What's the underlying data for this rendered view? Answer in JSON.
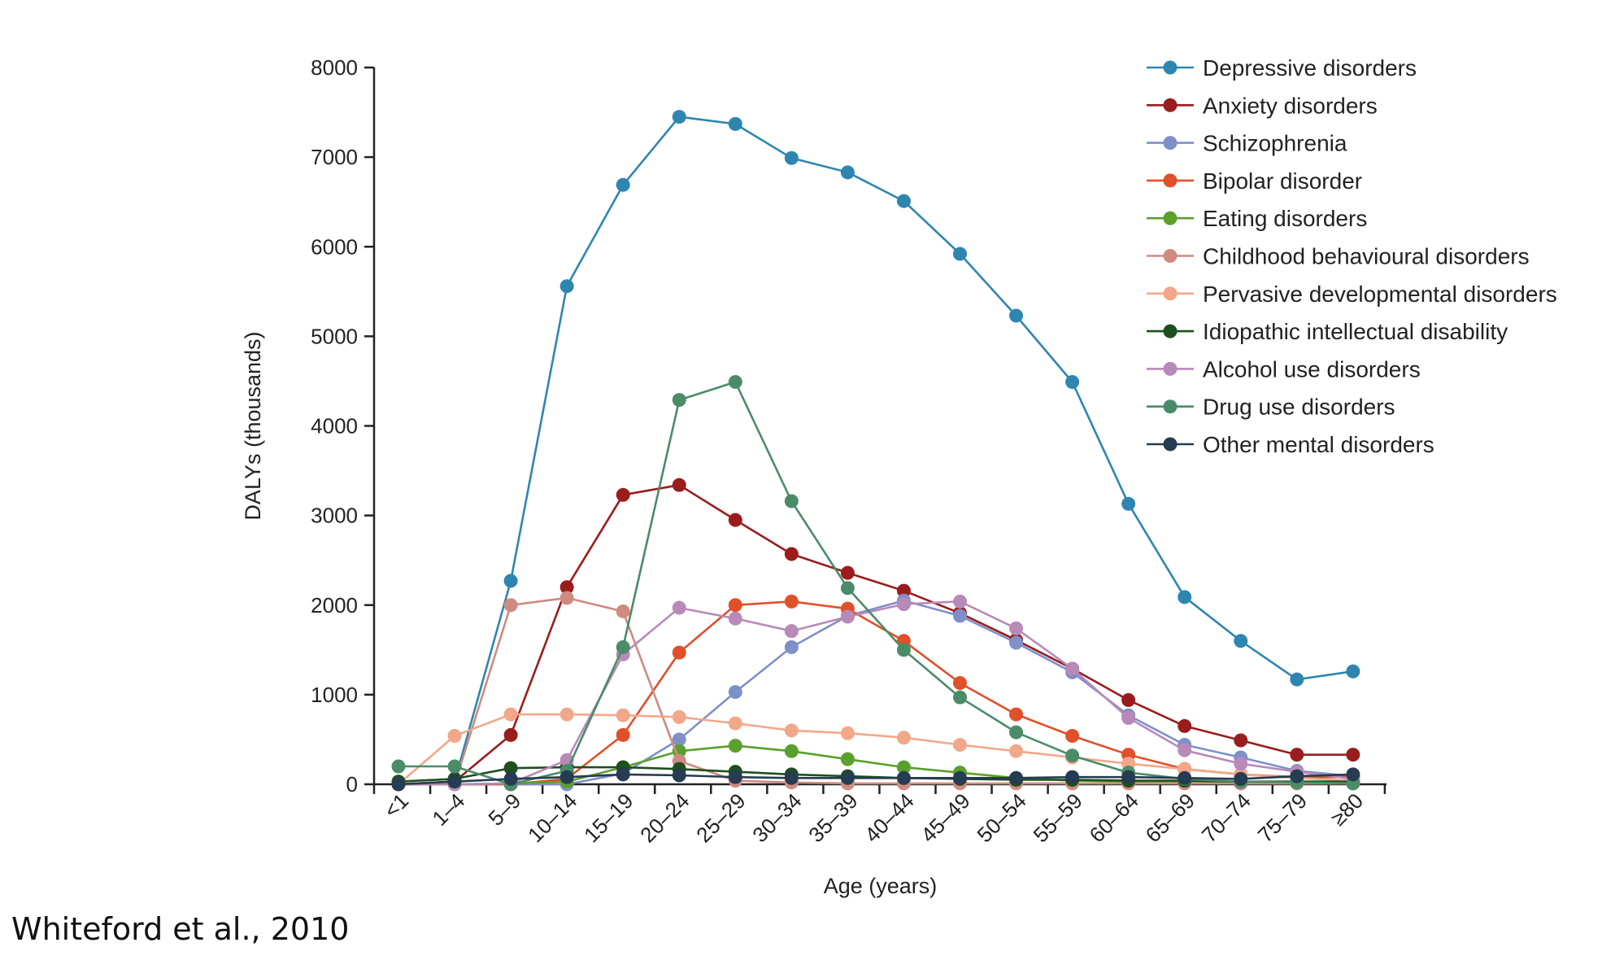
{
  "chart_data": {
    "type": "line",
    "xlabel": "Age (years)",
    "ylabel": "DALYs (thousands)",
    "ylim": [
      0,
      8000
    ],
    "yticks": [
      0,
      1000,
      2000,
      3000,
      4000,
      5000,
      6000,
      7000,
      8000
    ],
    "categories": [
      "<1",
      "1–4",
      "5–9",
      "10–14",
      "15–19",
      "20–24",
      "25–29",
      "30–34",
      "35–39",
      "40–44",
      "45–49",
      "50–54",
      "55–59",
      "60–64",
      "65–69",
      "70–74",
      "75–79",
      "≥80"
    ],
    "legend_position": "top-right",
    "grid": false,
    "series": [
      {
        "name": "Depressive disorders",
        "color": "#2e86b0",
        "values": [
          0,
          30,
          2270,
          5560,
          6690,
          7450,
          7370,
          6990,
          6830,
          6510,
          5920,
          5230,
          4490,
          3130,
          2090,
          1600,
          1170,
          1260
        ]
      },
      {
        "name": "Anxiety disorders",
        "color": "#9b1c1c",
        "values": [
          0,
          30,
          550,
          2200,
          3230,
          3340,
          2950,
          2570,
          2360,
          2160,
          1910,
          1610,
          1290,
          940,
          650,
          490,
          330,
          330
        ]
      },
      {
        "name": "Schizophrenia",
        "color": "#7f8fc8",
        "values": [
          0,
          0,
          0,
          0,
          120,
          500,
          1030,
          1530,
          1880,
          2050,
          1880,
          1580,
          1250,
          770,
          440,
          300,
          150,
          90
        ]
      },
      {
        "name": "Bipolar disorder",
        "color": "#e0502a",
        "values": [
          0,
          0,
          0,
          60,
          550,
          1470,
          2000,
          2040,
          1960,
          1600,
          1130,
          780,
          540,
          330,
          170,
          110,
          80,
          80
        ]
      },
      {
        "name": "Eating disorders",
        "color": "#5aa02c",
        "values": [
          0,
          0,
          10,
          30,
          190,
          370,
          430,
          370,
          280,
          190,
          130,
          70,
          40,
          30,
          20,
          10,
          10,
          10
        ]
      },
      {
        "name": "Childhood behavioural disorders",
        "color": "#d08a80",
        "values": [
          0,
          0,
          2000,
          2080,
          1930,
          260,
          40,
          20,
          10,
          10,
          10,
          10,
          10,
          10,
          10,
          10,
          10,
          10
        ]
      },
      {
        "name": "Pervasive developmental disorders",
        "color": "#f2a888",
        "values": [
          0,
          540,
          780,
          780,
          770,
          750,
          680,
          600,
          570,
          520,
          440,
          370,
          300,
          230,
          170,
          110,
          70,
          40
        ]
      },
      {
        "name": "Idiopathic intellectual disability",
        "color": "#1e4f1e",
        "values": [
          30,
          60,
          180,
          190,
          190,
          170,
          140,
          110,
          90,
          70,
          60,
          50,
          50,
          40,
          40,
          30,
          30,
          30
        ]
      },
      {
        "name": "Alcohol use disorders",
        "color": "#b88ab8",
        "values": [
          0,
          0,
          10,
          270,
          1450,
          1970,
          1850,
          1710,
          1870,
          2010,
          2040,
          1740,
          1290,
          740,
          380,
          230,
          140,
          60
        ]
      },
      {
        "name": "Drug use disorders",
        "color": "#4a8c68",
        "values": [
          200,
          200,
          0,
          150,
          1530,
          4290,
          4490,
          3160,
          2190,
          1500,
          970,
          580,
          320,
          130,
          60,
          30,
          20,
          10
        ]
      },
      {
        "name": "Other mental disorders",
        "color": "#253c52",
        "values": [
          0,
          30,
          60,
          80,
          110,
          100,
          80,
          70,
          70,
          70,
          70,
          70,
          80,
          80,
          70,
          60,
          90,
          110
        ]
      }
    ]
  },
  "citation": "Whiteford et al., 2010"
}
